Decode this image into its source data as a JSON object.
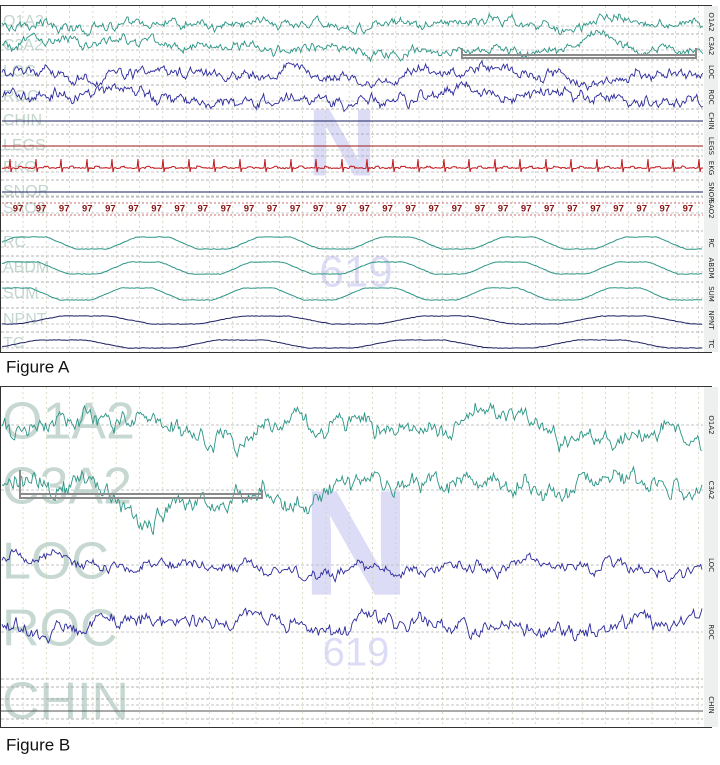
{
  "figure_a": {
    "caption": "Figure A",
    "watermark": "N",
    "watermark_number": "619",
    "channels": [
      "O1A2",
      "C3A2",
      "LOC",
      "ROC",
      "CHIN",
      "LEGS",
      "EKG",
      "SNOR",
      "SAO2",
      "RC",
      "ABDM",
      "SUM",
      "NPNT",
      "TC"
    ],
    "sao2_readings": [
      "97",
      "97",
      "97",
      "97",
      "97",
      "97",
      "97",
      "97",
      "97",
      "97",
      "97",
      "97",
      "97",
      "97",
      "97",
      "97",
      "97",
      "97",
      "97",
      "97",
      "97",
      "97",
      "97",
      "97",
      "97",
      "97",
      "97",
      "97",
      "97",
      "97"
    ]
  },
  "figure_b": {
    "caption": "Figure B",
    "watermark": "N",
    "watermark_number": "619",
    "channels": [
      "O1A2",
      "C3A2",
      "LOC",
      "ROC",
      "CHIN"
    ]
  }
}
